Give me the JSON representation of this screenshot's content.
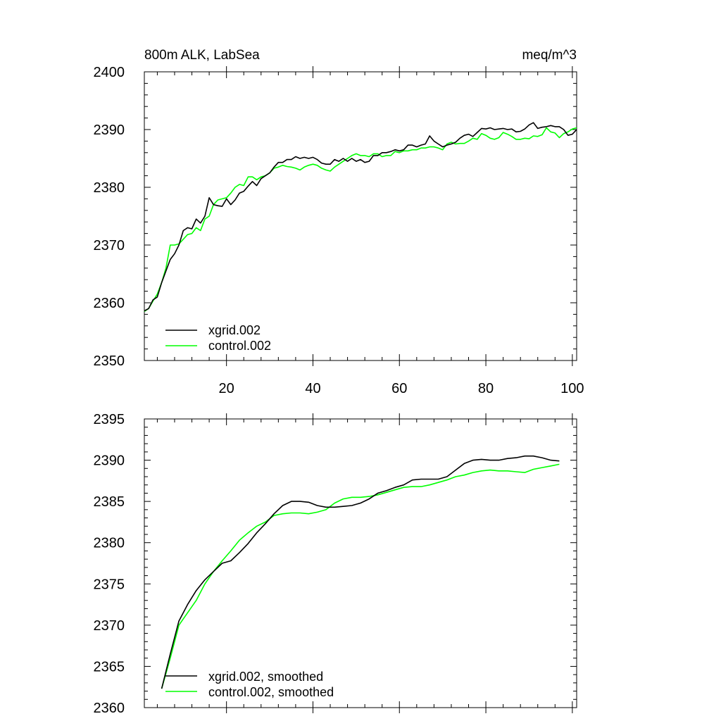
{
  "chart_data": [
    {
      "type": "line",
      "title": "800m ALK, LabSea",
      "units": "meq/m^3",
      "xlim": [
        1,
        101
      ],
      "ylim": [
        2350,
        2400
      ],
      "xticks": [
        20,
        40,
        60,
        80,
        100
      ],
      "yticks": [
        2350,
        2360,
        2370,
        2380,
        2390,
        2400
      ],
      "legend_position": "bottom-left",
      "series": [
        {
          "name": "xgrid.002",
          "color": "#000000",
          "x": [
            1,
            2,
            3,
            4,
            5,
            6,
            7,
            8,
            9,
            10,
            11,
            12,
            13,
            14,
            15,
            16,
            17,
            18,
            19,
            20,
            21,
            22,
            23,
            24,
            25,
            26,
            27,
            28,
            29,
            30,
            31,
            32,
            33,
            34,
            35,
            36,
            37,
            38,
            39,
            40,
            41,
            42,
            43,
            44,
            45,
            46,
            47,
            48,
            49,
            50,
            51,
            52,
            53,
            54,
            55,
            56,
            57,
            58,
            59,
            60,
            61,
            62,
            63,
            64,
            65,
            66,
            67,
            68,
            69,
            70,
            71,
            72,
            73,
            74,
            75,
            76,
            77,
            78,
            79,
            80,
            81,
            82,
            83,
            84,
            85,
            86,
            87,
            88,
            89,
            90,
            91,
            92,
            93,
            94,
            95,
            96,
            97,
            98,
            99,
            100,
            101
          ],
          "values": [
            2358.6,
            2359,
            2360.5,
            2361,
            2363.5,
            2365.5,
            2367.5,
            2368.5,
            2370,
            2372.5,
            2373,
            2372.8,
            2374.5,
            2373.8,
            2375,
            2378.2,
            2377,
            2376.8,
            2376.7,
            2378,
            2377,
            2377.8,
            2379,
            2379.3,
            2380.2,
            2381,
            2380.3,
            2381.5,
            2382,
            2382.5,
            2383.5,
            2384.3,
            2384.3,
            2384.8,
            2384.8,
            2385.3,
            2385,
            2385.2,
            2385,
            2385.2,
            2384.8,
            2384.2,
            2384,
            2384,
            2384.8,
            2384.5,
            2385,
            2384.5,
            2385,
            2384.5,
            2384.8,
            2384.3,
            2384.5,
            2385.5,
            2385.5,
            2386,
            2386,
            2386.2,
            2386.5,
            2386.3,
            2386.5,
            2387.3,
            2387.3,
            2387,
            2387.3,
            2387.5,
            2388.9,
            2388,
            2387.5,
            2387,
            2387.3,
            2387.5,
            2387.8,
            2388.5,
            2389,
            2389.2,
            2388.8,
            2389.5,
            2390.2,
            2390.1,
            2390.3,
            2390,
            2390.1,
            2390.2,
            2390,
            2390.1,
            2389.6,
            2389.7,
            2390.1,
            2390.8,
            2391.2,
            2390.2,
            2390.4,
            2390.5,
            2390.7,
            2390.5,
            2390.5,
            2390,
            2389,
            2389.2,
            2390
          ]
        },
        {
          "name": "control.002",
          "color": "#00ff00",
          "x": [
            1,
            2,
            3,
            4,
            5,
            6,
            7,
            8,
            9,
            10,
            11,
            12,
            13,
            14,
            15,
            16,
            17,
            18,
            19,
            20,
            21,
            22,
            23,
            24,
            25,
            26,
            27,
            28,
            29,
            30,
            31,
            32,
            33,
            34,
            35,
            36,
            37,
            38,
            39,
            40,
            41,
            42,
            43,
            44,
            45,
            46,
            47,
            48,
            49,
            50,
            51,
            52,
            53,
            54,
            55,
            56,
            57,
            58,
            59,
            60,
            61,
            62,
            63,
            64,
            65,
            66,
            67,
            68,
            69,
            70,
            71,
            72,
            73,
            74,
            75,
            76,
            77,
            78,
            79,
            80,
            81,
            82,
            83,
            84,
            85,
            86,
            87,
            88,
            89,
            90,
            91,
            92,
            93,
            94,
            95,
            96,
            97,
            98,
            99,
            100,
            101
          ],
          "values": [
            2358.5,
            2359,
            2360.3,
            2361.5,
            2363.5,
            2366,
            2370,
            2370,
            2370.2,
            2371,
            2371.8,
            2372,
            2373,
            2372.5,
            2374.5,
            2375,
            2377,
            2377.8,
            2378,
            2378.2,
            2379,
            2380,
            2380.5,
            2380.3,
            2381.8,
            2381.8,
            2381.3,
            2381.8,
            2382,
            2382.5,
            2383.3,
            2383.5,
            2383.8,
            2383.6,
            2383.5,
            2383.3,
            2383,
            2383.5,
            2383.8,
            2384,
            2383.8,
            2383.3,
            2383,
            2382.8,
            2383.5,
            2384,
            2384.5,
            2385,
            2385.5,
            2385.8,
            2385.5,
            2385.5,
            2385.3,
            2385.8,
            2385.8,
            2385.3,
            2385.5,
            2385.5,
            2386.2,
            2386,
            2386.3,
            2386.3,
            2386.5,
            2386.5,
            2386.8,
            2386.8,
            2387,
            2387,
            2386.8,
            2386.5,
            2387.5,
            2387.8,
            2387.5,
            2387.6,
            2387.6,
            2388,
            2388.5,
            2388.3,
            2389.3,
            2389,
            2388.5,
            2388.3,
            2388.6,
            2389.5,
            2389.2,
            2388.8,
            2388.3,
            2388.3,
            2388.5,
            2388.4,
            2388.9,
            2388.8,
            2389.1,
            2390.3,
            2389.6,
            2389.4,
            2388.6,
            2389.3,
            2389.6,
            2390.1,
            2390.3
          ]
        }
      ]
    },
    {
      "type": "line",
      "title": "",
      "xlim": [
        1,
        101
      ],
      "ylim": [
        2360,
        2395
      ],
      "yticks": [
        2360,
        2365,
        2370,
        2375,
        2380,
        2385,
        2390,
        2395
      ],
      "xticks_positions": [
        20,
        40,
        60,
        80,
        100
      ],
      "legend_position": "bottom-left",
      "series": [
        {
          "name": "xgrid.002, smoothed",
          "color": "#000000",
          "x": [
            5,
            7,
            9,
            11,
            13,
            15,
            17,
            19,
            21,
            23,
            25,
            27,
            29,
            31,
            33,
            35,
            37,
            39,
            41,
            43,
            45,
            47,
            49,
            51,
            53,
            55,
            57,
            59,
            61,
            63,
            65,
            67,
            69,
            71,
            73,
            75,
            77,
            79,
            81,
            83,
            85,
            87,
            89,
            91,
            93,
            95,
            97
          ],
          "values": [
            2362.3,
            2366.5,
            2370.5,
            2372.5,
            2374.2,
            2375.5,
            2376.5,
            2377.5,
            2377.8,
            2378.8,
            2379.9,
            2381.2,
            2382.3,
            2383.5,
            2384.5,
            2385,
            2385,
            2384.9,
            2384.5,
            2384.3,
            2384.3,
            2384.4,
            2384.5,
            2384.8,
            2385.3,
            2386,
            2386.3,
            2386.7,
            2387,
            2387.6,
            2387.7,
            2387.7,
            2387.7,
            2388,
            2388.8,
            2389.6,
            2390,
            2390.1,
            2390,
            2390,
            2390.2,
            2390.3,
            2390.5,
            2390.5,
            2390.3,
            2390,
            2389.9
          ]
        },
        {
          "name": "control.002, smoothed",
          "color": "#00ff00",
          "x": [
            5,
            7,
            9,
            11,
            13,
            15,
            17,
            19,
            21,
            23,
            25,
            27,
            29,
            31,
            33,
            35,
            37,
            39,
            41,
            43,
            45,
            47,
            49,
            51,
            53,
            55,
            57,
            59,
            61,
            63,
            65,
            67,
            69,
            71,
            73,
            75,
            77,
            79,
            81,
            83,
            85,
            87,
            89,
            91,
            93,
            95,
            97
          ],
          "values": [
            2362.3,
            2366,
            2370,
            2371.5,
            2373,
            2375,
            2376.5,
            2377.8,
            2379,
            2380.3,
            2381.2,
            2382,
            2382.5,
            2383.3,
            2383.5,
            2383.6,
            2383.6,
            2383.5,
            2383.7,
            2384,
            2384.8,
            2385.3,
            2385.5,
            2385.5,
            2385.6,
            2385.8,
            2386.1,
            2386.4,
            2386.7,
            2386.8,
            2386.8,
            2387,
            2387.3,
            2387.6,
            2388,
            2388.2,
            2388.5,
            2388.7,
            2388.8,
            2388.7,
            2388.7,
            2388.6,
            2388.5,
            2388.9,
            2389.1,
            2389.3,
            2389.5
          ]
        }
      ]
    }
  ]
}
